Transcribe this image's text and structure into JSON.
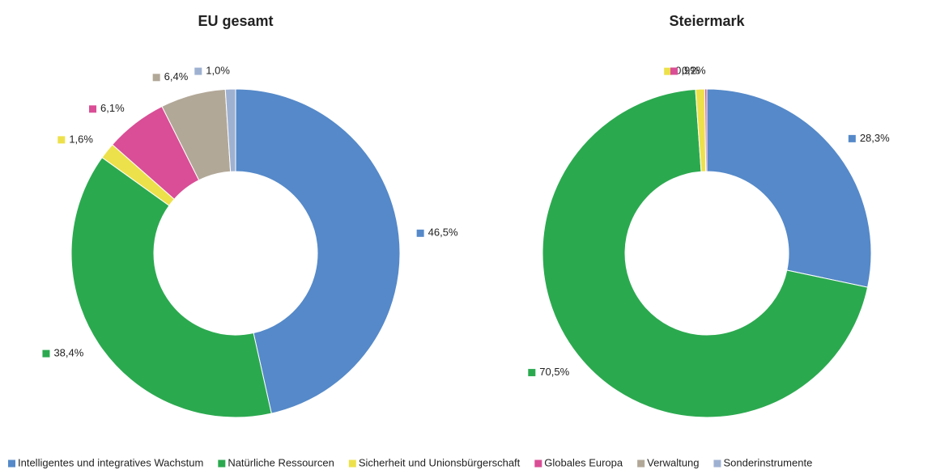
{
  "chart_data": [
    {
      "type": "pie",
      "title": "EU gesamt",
      "values": [
        46.5,
        38.4,
        1.6,
        6.1,
        6.4,
        1.0
      ],
      "value_labels": [
        "46,5%",
        "38,4%",
        "1,6%",
        "6,1%",
        "6,4%",
        "1,0%"
      ]
    },
    {
      "type": "pie",
      "title": "Steiermark",
      "values": [
        28.3,
        70.5,
        0.9,
        0.2
      ],
      "value_labels": [
        "28,3%",
        "70,5%",
        "0,9%",
        "0,2%"
      ]
    }
  ],
  "legend": {
    "categories": [
      "Intelligentes und integratives Wachstum",
      "Natürliche Ressourcen",
      "Sicherheit und Unionsbürgerschaft",
      "Globales Europa",
      "Verwaltung",
      "Sonderinstrumente"
    ],
    "colors": [
      "#5589c9",
      "#2ba94f",
      "#ede14b",
      "#d94e96",
      "#b2a898",
      "#9fb1d1"
    ]
  }
}
